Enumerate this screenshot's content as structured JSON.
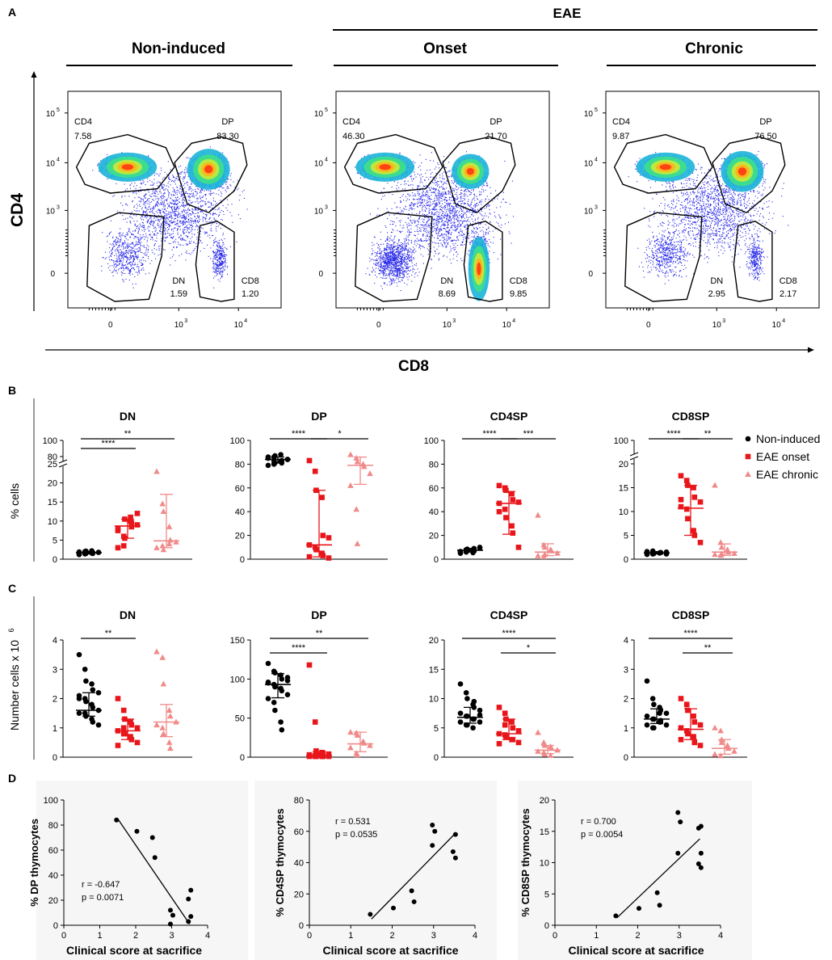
{
  "colors": {
    "non_induced": "#000000",
    "eae_onset": "#e8161b",
    "eae_chronic": "#f08a8a",
    "flow_blue": "#2323e8"
  },
  "panel_labels": [
    "A",
    "B",
    "C",
    "D"
  ],
  "panelA": {
    "group_eae": "EAE",
    "conditions": [
      {
        "name": "Non-induced",
        "gates": {
          "CD4": "7.58",
          "DP": "83.30",
          "DN": "1.59",
          "CD8": "1.20"
        }
      },
      {
        "name": "Onset",
        "gates": {
          "CD4": "46.30",
          "DP": "21.70",
          "DN": "8.69",
          "CD8": "9.85"
        }
      },
      {
        "name": "Chronic",
        "gates": {
          "CD4": "9.87",
          "DP": "76.50",
          "DN": "2.95",
          "CD8": "2.17"
        }
      }
    ],
    "gate_names": {
      "cd4": "CD4",
      "dp": "DP",
      "dn": "DN",
      "cd8": "CD8"
    },
    "y_axis_label": "CD4",
    "x_axis_label": "CD8",
    "y_ticks": [
      "0",
      "10",
      "10",
      "10"
    ],
    "y_tick_exps": [
      "",
      "3",
      "4",
      "5"
    ],
    "x_ticks": [
      "0",
      "10",
      "10"
    ],
    "x_tick_exps": [
      "",
      "3",
      "4"
    ]
  },
  "legend": {
    "items": [
      "Non-induced",
      "EAE onset",
      "EAE chronic"
    ]
  },
  "chart_data": [
    {
      "type": "scatter",
      "panel": "B",
      "title": "DN",
      "ylabel": "% cells",
      "ylim": [
        0,
        100
      ],
      "y_ticks": [
        "0",
        "5",
        "10",
        "15",
        "20",
        "25",
        "80",
        "100"
      ],
      "significance": [
        {
          "groups": [
            0,
            1
          ],
          "label": "****"
        },
        {
          "groups": [
            0,
            2
          ],
          "label": "**"
        }
      ],
      "series": [
        {
          "name": "Non-induced",
          "values": [
            1.2,
            1.4,
            1.5,
            1.6,
            1.7,
            1.8,
            1.9,
            2.0,
            2.1,
            2.2,
            1.5,
            1.8,
            1.3,
            1.7
          ],
          "median": 1.7,
          "iqr": [
            1.4,
            2.0
          ]
        },
        {
          "name": "EAE onset",
          "values": [
            7.5,
            6.0,
            10.5,
            11.0,
            8.5,
            9.0,
            8.0,
            3.5,
            5.5,
            10.0,
            9.5,
            12.0,
            3.0
          ],
          "median": 8.7,
          "iqr": [
            5.5,
            10.5
          ]
        },
        {
          "name": "EAE chronic",
          "values": [
            23.0,
            14.5,
            12.5,
            8.5,
            5.0,
            4.5,
            3.0,
            3.5,
            2.5,
            4.0
          ],
          "median": 4.8,
          "iqr": [
            3.0,
            17.0
          ]
        }
      ]
    },
    {
      "type": "scatter",
      "panel": "B",
      "title": "DP",
      "ylabel": "",
      "ylim": [
        0,
        100
      ],
      "y_ticks": [
        "0",
        "20",
        "40",
        "60",
        "80",
        "100"
      ],
      "significance": [
        {
          "groups": [
            0,
            1
          ],
          "label": "****"
        },
        {
          "groups": [
            1,
            2
          ],
          "label": "*"
        }
      ],
      "series": [
        {
          "name": "Non-induced",
          "values": [
            79,
            80,
            81,
            82,
            83,
            84,
            85,
            86,
            87,
            88,
            81,
            84,
            86,
            83
          ],
          "median": 84,
          "iqr": [
            81,
            86
          ]
        },
        {
          "name": "EAE onset",
          "values": [
            83,
            74,
            58,
            52,
            20,
            18,
            12,
            10,
            8,
            5,
            3,
            1,
            2
          ],
          "median": 12,
          "iqr": [
            2,
            58
          ]
        },
        {
          "name": "EAE chronic",
          "values": [
            88,
            85,
            82,
            80,
            78,
            72,
            62,
            42,
            13
          ],
          "median": 79,
          "iqr": [
            63,
            86
          ]
        }
      ]
    },
    {
      "type": "scatter",
      "panel": "B",
      "title": "CD4SP",
      "ylabel": "",
      "ylim": [
        0,
        100
      ],
      "y_ticks": [
        "0",
        "20",
        "40",
        "60",
        "80",
        "100"
      ],
      "significance": [
        {
          "groups": [
            0,
            1
          ],
          "label": "****"
        },
        {
          "groups": [
            1,
            2
          ],
          "label": "***"
        }
      ],
      "series": [
        {
          "name": "Non-induced",
          "values": [
            5,
            6,
            7,
            8,
            9,
            10,
            6.5,
            7.5,
            8.5,
            5.5,
            7,
            9.5,
            6,
            8
          ],
          "median": 7.5,
          "iqr": [
            6.0,
            9.0
          ]
        },
        {
          "name": "EAE onset",
          "values": [
            62,
            60,
            58,
            55,
            50,
            48,
            47,
            42,
            35,
            28,
            22,
            10,
            40
          ],
          "median": 47,
          "iqr": [
            21,
            57
          ]
        },
        {
          "name": "EAE chronic",
          "values": [
            37,
            12,
            10,
            8,
            7,
            5,
            3,
            2,
            4
          ],
          "median": 6,
          "iqr": [
            3,
            13
          ]
        }
      ]
    },
    {
      "type": "scatter",
      "panel": "B",
      "title": "CD8SP",
      "ylabel": "",
      "ylim": [
        0,
        100
      ],
      "y_ticks": [
        "0",
        "5",
        "10",
        "15",
        "20",
        "100"
      ],
      "significance": [
        {
          "groups": [
            0,
            1
          ],
          "label": "****"
        },
        {
          "groups": [
            1,
            2
          ],
          "label": "**"
        }
      ],
      "series": [
        {
          "name": "Non-induced",
          "values": [
            1.0,
            1.1,
            1.2,
            1.3,
            1.4,
            1.5,
            1.6,
            1.7,
            1.2,
            1.3,
            1.4,
            1.1,
            1.5,
            1.3
          ],
          "median": 1.3,
          "iqr": [
            1.1,
            1.6
          ]
        },
        {
          "name": "EAE onset",
          "values": [
            17.5,
            16.5,
            15.5,
            15.0,
            13.0,
            12.0,
            11.0,
            10.5,
            8.5,
            6.0,
            5.0,
            3.5,
            12.5
          ],
          "median": 10.7,
          "iqr": [
            5.0,
            15.5
          ]
        },
        {
          "name": "EAE chronic",
          "values": [
            15.5,
            3.5,
            2.5,
            2.0,
            1.5,
            1.2,
            1.0,
            0.8,
            1.1
          ],
          "median": 1.5,
          "iqr": [
            0.8,
            3.2
          ]
        }
      ]
    },
    {
      "type": "scatter",
      "panel": "C",
      "title": "DN",
      "ylabel": "Number cells x 10",
      "ylabel_exp": "6",
      "ylim": [
        0,
        4
      ],
      "y_ticks": [
        "0",
        "1",
        "2",
        "3",
        "4"
      ],
      "significance": [
        {
          "groups": [
            0,
            1
          ],
          "label": "**"
        }
      ],
      "series": [
        {
          "name": "Non-induced",
          "values": [
            3.5,
            3.0,
            2.6,
            2.5,
            2.3,
            2.2,
            2.1,
            2.0,
            1.9,
            1.8,
            1.7,
            1.6,
            1.5,
            1.5,
            1.4,
            1.3,
            1.2,
            1.1,
            2.0
          ],
          "median": 1.6,
          "iqr": [
            1.4,
            2.2
          ]
        },
        {
          "name": "EAE onset",
          "values": [
            2.0,
            1.6,
            1.3,
            1.2,
            1.1,
            1.0,
            0.9,
            0.8,
            0.8,
            0.7,
            0.6,
            0.5,
            0.4,
            1.0
          ],
          "median": 0.9,
          "iqr": [
            0.6,
            1.3
          ]
        },
        {
          "name": "EAE chronic",
          "values": [
            3.6,
            3.4,
            2.5,
            1.6,
            1.4,
            1.2,
            1.1,
            1.0,
            0.8,
            0.5,
            0.3
          ],
          "median": 1.2,
          "iqr": [
            0.7,
            1.8
          ]
        }
      ]
    },
    {
      "type": "scatter",
      "panel": "C",
      "title": "DP",
      "ylabel": "",
      "ylim": [
        0,
        150
      ],
      "y_ticks": [
        "0",
        "50",
        "100",
        "150"
      ],
      "significance": [
        {
          "groups": [
            0,
            2
          ],
          "label": "**"
        },
        {
          "groups": [
            0,
            1
          ],
          "label": "****"
        }
      ],
      "series": [
        {
          "name": "Non-induced",
          "values": [
            120,
            110,
            108,
            105,
            100,
            98,
            95,
            93,
            90,
            88,
            85,
            80,
            75,
            70,
            60,
            45,
            35,
            102,
            96
          ],
          "median": 93,
          "iqr": [
            76,
            107
          ]
        },
        {
          "name": "EAE onset",
          "values": [
            118,
            45,
            8,
            6,
            5,
            4,
            3,
            2,
            2,
            1,
            1,
            1,
            1,
            1,
            1
          ],
          "median": 2,
          "iqr": [
            1,
            7
          ]
        },
        {
          "name": "EAE chronic",
          "values": [
            32,
            31,
            28,
            20,
            18,
            15,
            12,
            5,
            3
          ],
          "median": 17,
          "iqr": [
            7,
            32
          ]
        }
      ]
    },
    {
      "type": "scatter",
      "panel": "C",
      "title": "CD4SP",
      "ylabel": "",
      "ylim": [
        0,
        20
      ],
      "y_ticks": [
        "0",
        "5",
        "10",
        "15",
        "20"
      ],
      "significance": [
        {
          "groups": [
            0,
            2
          ],
          "label": "****"
        },
        {
          "groups": [
            1,
            2
          ],
          "label": "*"
        }
      ],
      "series": [
        {
          "name": "Non-induced",
          "values": [
            12.5,
            11.0,
            10.0,
            9.0,
            8.5,
            8.0,
            7.5,
            7.0,
            7.0,
            6.5,
            6.5,
            6.0,
            6.0,
            5.5,
            5.5,
            5.0,
            9.5,
            7.2
          ],
          "median": 6.8,
          "iqr": [
            5.8,
            8.5
          ]
        },
        {
          "name": "EAE onset",
          "values": [
            8.5,
            7.5,
            6.5,
            6.0,
            5.0,
            4.5,
            4.0,
            3.8,
            3.5,
            3.0,
            3.0,
            2.5,
            2.3,
            5.5
          ],
          "median": 4.0,
          "iqr": [
            3.0,
            6.5
          ]
        },
        {
          "name": "EAE chronic",
          "values": [
            4.2,
            2.5,
            2.0,
            1.8,
            1.5,
            1.2,
            1.0,
            0.8,
            0.5,
            0.3
          ],
          "median": 1.2,
          "iqr": [
            0.6,
            2.0
          ]
        }
      ]
    },
    {
      "type": "scatter",
      "panel": "C",
      "title": "CD8SP",
      "ylabel": "",
      "ylim": [
        0,
        4
      ],
      "y_ticks": [
        "0",
        "1",
        "2",
        "3",
        "4"
      ],
      "significance": [
        {
          "groups": [
            0,
            2
          ],
          "label": "****"
        },
        {
          "groups": [
            1,
            2
          ],
          "label": "**"
        }
      ],
      "series": [
        {
          "name": "Non-induced",
          "values": [
            2.6,
            2.0,
            1.8,
            1.7,
            1.6,
            1.5,
            1.4,
            1.3,
            1.3,
            1.2,
            1.2,
            1.1,
            1.1,
            1.0,
            1.0,
            1.5,
            1.25
          ],
          "median": 1.3,
          "iqr": [
            1.15,
            1.65
          ]
        },
        {
          "name": "EAE onset",
          "values": [
            2.0,
            1.8,
            1.6,
            1.4,
            1.2,
            1.1,
            1.0,
            0.9,
            0.8,
            0.7,
            0.5,
            0.4,
            0.6
          ],
          "median": 0.95,
          "iqr": [
            0.6,
            1.65
          ]
        },
        {
          "name": "EAE chronic",
          "values": [
            1.0,
            0.9,
            0.5,
            0.4,
            0.3,
            0.2,
            0.1,
            0.05,
            0.6
          ],
          "median": 0.3,
          "iqr": [
            0.1,
            0.6
          ]
        }
      ]
    },
    {
      "type": "scatter",
      "panel": "D",
      "ylabel": "% DP thymocytes",
      "xlabel": "Clinical score at sacrifice",
      "xlim": [
        0,
        4
      ],
      "ylim": [
        0,
        100
      ],
      "x_ticks": [
        "0",
        "1",
        "2",
        "3",
        "4"
      ],
      "y_ticks": [
        "0",
        "20",
        "40",
        "60",
        "80",
        "100"
      ],
      "stats": [
        "r = -0.647",
        "p = 0.0071"
      ],
      "x": [
        1.5,
        2.0,
        2.5,
        2.5,
        3.0,
        3.0,
        3.0,
        3.5,
        3.5,
        3.5,
        3.5
      ],
      "y": [
        84,
        75,
        70,
        54,
        12,
        8,
        1,
        28,
        21,
        7,
        3
      ],
      "fit_line": {
        "x": [
          1.5,
          3.5
        ],
        "y": [
          85,
          1
        ]
      }
    },
    {
      "type": "scatter",
      "panel": "D",
      "ylabel": "% CD4SP thymocytes",
      "xlabel": "Clinical score at sacrifice",
      "xlim": [
        0,
        4
      ],
      "ylim": [
        0,
        80
      ],
      "x_ticks": [
        "0",
        "1",
        "2",
        "3",
        "4"
      ],
      "y_ticks": [
        "0",
        "20",
        "40",
        "60",
        "80"
      ],
      "stats": [
        "r = 0.531",
        "p = 0.0535"
      ],
      "x": [
        1.5,
        2.0,
        2.5,
        2.5,
        3.0,
        3.0,
        3.0,
        3.5,
        3.5,
        3.5
      ],
      "y": [
        7,
        11,
        22,
        15,
        64,
        60,
        51,
        58,
        47,
        43
      ],
      "fit_line": {
        "x": [
          1.5,
          3.5
        ],
        "y": [
          4,
          58
        ]
      }
    },
    {
      "type": "scatter",
      "panel": "D",
      "ylabel": "% CD8SP thymocytes",
      "xlabel": "Clinical score at sacrifice",
      "xlim": [
        0,
        4
      ],
      "ylim": [
        0,
        20
      ],
      "x_ticks": [
        "0",
        "1",
        "2",
        "3",
        "4"
      ],
      "y_ticks": [
        "0",
        "5",
        "10",
        "15",
        "20"
      ],
      "stats": [
        "r = 0.700",
        "p = 0.0054"
      ],
      "x": [
        1.5,
        2.0,
        2.5,
        2.5,
        3.0,
        3.0,
        3.0,
        3.5,
        3.5,
        3.5,
        3.5,
        3.5
      ],
      "y": [
        1.5,
        2.7,
        5.2,
        3.2,
        18.0,
        16.5,
        11.5,
        15.8,
        15.5,
        11.5,
        9.8,
        9.2
      ],
      "fit_line": {
        "x": [
          1.5,
          3.5
        ],
        "y": [
          1.2,
          13.8
        ]
      }
    }
  ]
}
